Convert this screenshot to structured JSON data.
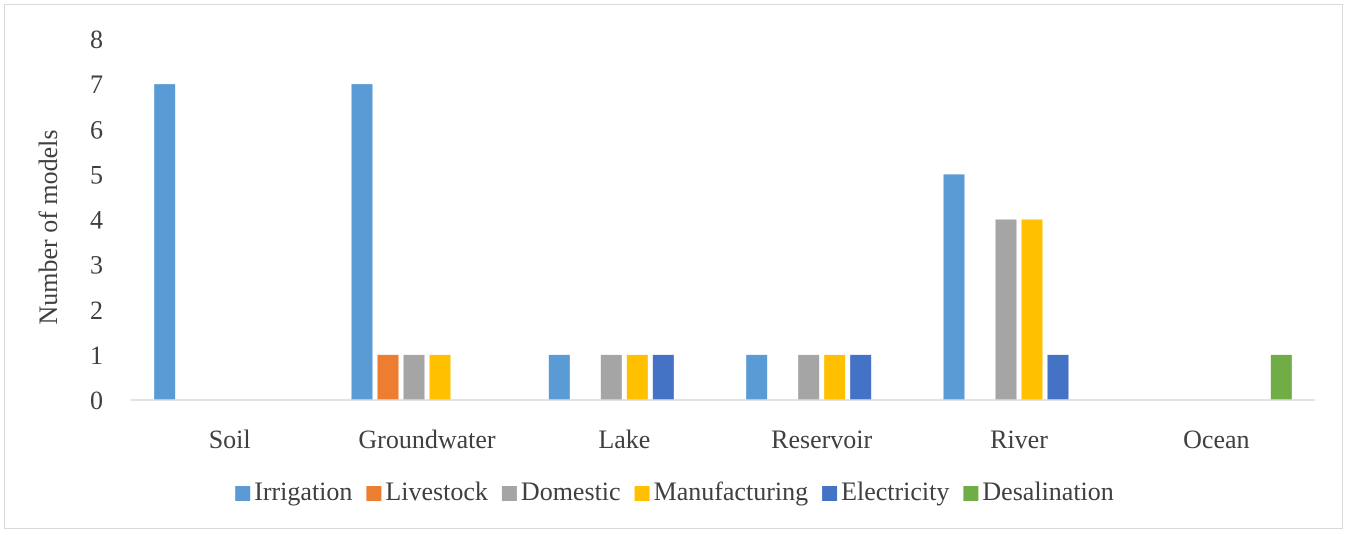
{
  "chart_data": {
    "type": "bar",
    "title": "",
    "xlabel": "",
    "ylabel": "Number of models",
    "ylim": [
      0,
      8
    ],
    "yticks": [
      0,
      1,
      2,
      3,
      4,
      5,
      6,
      7,
      8
    ],
    "ytick_labels": [
      "0",
      "1",
      "2",
      "3",
      "4",
      "5",
      "6",
      "7",
      "8"
    ],
    "grid": false,
    "legend_position": "bottom",
    "categories": [
      "Soil",
      "Groundwater",
      "Lake",
      "Reservoir",
      "River",
      "Ocean"
    ],
    "series": [
      {
        "name": "Irrigation",
        "color": "#5B9BD5",
        "values": [
          7,
          7,
          1,
          1,
          5,
          0
        ]
      },
      {
        "name": "Livestock",
        "color": "#ED7D31",
        "values": [
          0,
          1,
          0,
          0,
          0,
          0
        ]
      },
      {
        "name": "Domestic",
        "color": "#A5A5A5",
        "values": [
          0,
          1,
          1,
          1,
          4,
          0
        ]
      },
      {
        "name": "Manufacturing",
        "color": "#FFC000",
        "values": [
          0,
          1,
          1,
          1,
          4,
          0
        ]
      },
      {
        "name": "Electricity",
        "color": "#4472C4",
        "values": [
          0,
          0,
          1,
          1,
          1,
          0
        ]
      },
      {
        "name": "Desalination",
        "color": "#70AD47",
        "values": [
          0,
          0,
          0,
          0,
          0,
          1
        ]
      }
    ]
  }
}
